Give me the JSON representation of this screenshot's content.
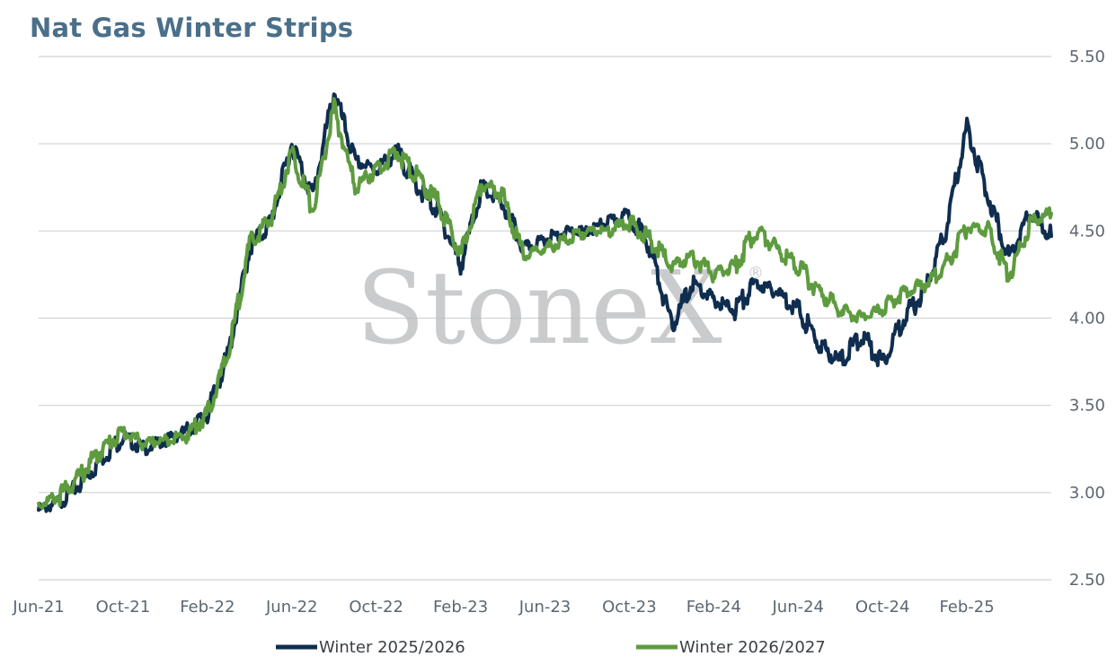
{
  "watermark": "StoneX",
  "watermark_mark": "®",
  "chart_data": {
    "type": "line",
    "title": "Nat Gas Winter Strips",
    "xlabel": "",
    "ylabel": "",
    "x_ticks": [
      "Jun-21",
      "Oct-21",
      "Feb-22",
      "Jun-22",
      "Oct-22",
      "Feb-23",
      "Jun-23",
      "Oct-23",
      "Feb-24",
      "Jun-24",
      "Oct-24",
      "Feb-25"
    ],
    "y_ticks": [
      "2.50",
      "3.00",
      "3.50",
      "4.00",
      "4.50",
      "5.00",
      "5.50"
    ],
    "ylim": [
      2.5,
      5.5
    ],
    "xlim": [
      "2021-06",
      "2025-06"
    ],
    "grid": "horizontal",
    "legend_position": "bottom",
    "series": [
      {
        "name": "Winter 2025/2026",
        "color": "#0f2d4f",
        "points": [
          [
            "2021-06",
            2.9
          ],
          [
            "2021-07",
            2.95
          ],
          [
            "2021-08",
            3.05
          ],
          [
            "2021-09",
            3.2
          ],
          [
            "2021-10",
            3.32
          ],
          [
            "2021-11",
            3.25
          ],
          [
            "2021-12",
            3.3
          ],
          [
            "2022-01",
            3.35
          ],
          [
            "2022-02",
            3.45
          ],
          [
            "2022-03",
            3.8
          ],
          [
            "2022-04",
            4.4
          ],
          [
            "2022-05",
            4.55
          ],
          [
            "2022-06",
            5.0
          ],
          [
            "2022-07",
            4.7
          ],
          [
            "2022-08",
            5.3
          ],
          [
            "2022-09",
            4.9
          ],
          [
            "2022-10",
            4.85
          ],
          [
            "2022-11",
            4.95
          ],
          [
            "2022-12",
            4.75
          ],
          [
            "2023-01",
            4.6
          ],
          [
            "2023-02",
            4.3
          ],
          [
            "2023-03",
            4.75
          ],
          [
            "2023-04",
            4.65
          ],
          [
            "2023-05",
            4.4
          ],
          [
            "2023-06",
            4.45
          ],
          [
            "2023-07",
            4.5
          ],
          [
            "2023-08",
            4.5
          ],
          [
            "2023-09",
            4.55
          ],
          [
            "2023-10",
            4.6
          ],
          [
            "2023-11",
            4.4
          ],
          [
            "2023-12",
            3.95
          ],
          [
            "2024-01",
            4.2
          ],
          [
            "2024-02",
            4.1
          ],
          [
            "2024-03",
            4.05
          ],
          [
            "2024-04",
            4.2
          ],
          [
            "2024-05",
            4.15
          ],
          [
            "2024-06",
            4.05
          ],
          [
            "2024-07",
            3.85
          ],
          [
            "2024-08",
            3.75
          ],
          [
            "2024-09",
            3.9
          ],
          [
            "2024-10",
            3.75
          ],
          [
            "2024-11",
            4.0
          ],
          [
            "2024-12",
            4.15
          ],
          [
            "2025-01",
            4.5
          ],
          [
            "2025-02",
            5.1
          ],
          [
            "2025-03",
            4.7
          ],
          [
            "2025-04",
            4.35
          ],
          [
            "2025-05",
            4.6
          ],
          [
            "2025-06",
            4.47
          ]
        ]
      },
      {
        "name": "Winter 2026/2027",
        "color": "#5e9b3f",
        "points": [
          [
            "2021-06",
            2.93
          ],
          [
            "2021-07",
            2.98
          ],
          [
            "2021-08",
            3.1
          ],
          [
            "2021-09",
            3.25
          ],
          [
            "2021-10",
            3.35
          ],
          [
            "2021-11",
            3.28
          ],
          [
            "2021-12",
            3.3
          ],
          [
            "2022-01",
            3.33
          ],
          [
            "2022-02",
            3.45
          ],
          [
            "2022-03",
            3.8
          ],
          [
            "2022-04",
            4.42
          ],
          [
            "2022-05",
            4.57
          ],
          [
            "2022-06",
            4.95
          ],
          [
            "2022-07",
            4.62
          ],
          [
            "2022-08",
            5.2
          ],
          [
            "2022-09",
            4.75
          ],
          [
            "2022-10",
            4.85
          ],
          [
            "2022-11",
            4.95
          ],
          [
            "2022-12",
            4.8
          ],
          [
            "2023-01",
            4.65
          ],
          [
            "2023-02",
            4.35
          ],
          [
            "2023-03",
            4.78
          ],
          [
            "2023-04",
            4.7
          ],
          [
            "2023-05",
            4.35
          ],
          [
            "2023-06",
            4.4
          ],
          [
            "2023-07",
            4.45
          ],
          [
            "2023-08",
            4.5
          ],
          [
            "2023-09",
            4.5
          ],
          [
            "2023-10",
            4.55
          ],
          [
            "2023-11",
            4.45
          ],
          [
            "2023-12",
            4.3
          ],
          [
            "2024-01",
            4.35
          ],
          [
            "2024-02",
            4.25
          ],
          [
            "2024-03",
            4.3
          ],
          [
            "2024-04",
            4.5
          ],
          [
            "2024-05",
            4.4
          ],
          [
            "2024-06",
            4.3
          ],
          [
            "2024-07",
            4.15
          ],
          [
            "2024-08",
            4.05
          ],
          [
            "2024-09",
            4.0
          ],
          [
            "2024-10",
            4.05
          ],
          [
            "2024-11",
            4.15
          ],
          [
            "2024-12",
            4.2
          ],
          [
            "2025-01",
            4.3
          ],
          [
            "2025-02",
            4.52
          ],
          [
            "2025-03",
            4.5
          ],
          [
            "2025-04",
            4.25
          ],
          [
            "2025-05",
            4.55
          ],
          [
            "2025-06",
            4.6
          ]
        ]
      }
    ]
  }
}
